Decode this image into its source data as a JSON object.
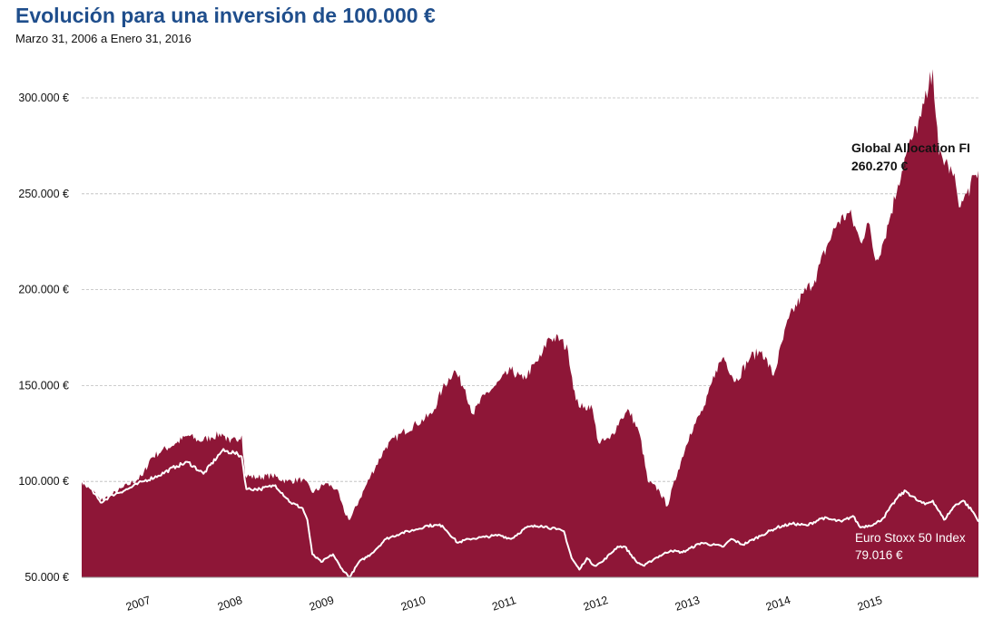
{
  "title": "Evolución para una inversión de 100.000 €",
  "subtitle": "Marzo 31, 2006 a Enero 31, 2016",
  "colors": {
    "fund": "#8e1637",
    "index": "#ffffff",
    "title": "#1f4e8c",
    "grid": "#bbbbbb"
  },
  "chart_data": {
    "type": "area",
    "title": "Evolución para una inversión de 100.000 €",
    "subtitle": "Marzo 31, 2006 a Enero 31, 2016",
    "xlabel": "",
    "ylabel": "",
    "x_range": [
      "2006-03-31",
      "2016-01-31"
    ],
    "ylim": [
      50000,
      320000
    ],
    "y_ticks": [
      50000,
      100000,
      150000,
      200000,
      250000,
      300000
    ],
    "y_tick_labels": [
      "50.000 €",
      "100.000 €",
      "150.000 €",
      "200.000 €",
      "250.000 €",
      "300.000 €"
    ],
    "x_tick_labels": [
      "2007",
      "2008",
      "2009",
      "2010",
      "2011",
      "2012",
      "2013",
      "2014",
      "2015"
    ],
    "grid": true,
    "series": [
      {
        "name": "Global Allocation FI",
        "kind": "area",
        "color": "#8e1637",
        "final_label": "260.270 €",
        "points": [
          [
            "2006-03-31",
            100000
          ],
          [
            "2006-05-01",
            97000
          ],
          [
            "2006-06-15",
            90000
          ],
          [
            "2006-08-01",
            93000
          ],
          [
            "2006-10-01",
            98000
          ],
          [
            "2006-12-01",
            103000
          ],
          [
            "2007-01-01",
            112000
          ],
          [
            "2007-02-15",
            116000
          ],
          [
            "2007-04-15",
            120000
          ],
          [
            "2007-06-01",
            124000
          ],
          [
            "2007-07-15",
            121000
          ],
          [
            "2007-09-01",
            123000
          ],
          [
            "2007-10-15",
            125000
          ],
          [
            "2007-11-15",
            120000
          ],
          [
            "2008-01-01",
            124000
          ],
          [
            "2008-01-15",
            103000
          ],
          [
            "2008-03-01",
            102000
          ],
          [
            "2008-05-01",
            103000
          ],
          [
            "2008-07-01",
            100000
          ],
          [
            "2008-09-01",
            101000
          ],
          [
            "2008-10-15",
            94000
          ],
          [
            "2008-12-01",
            99000
          ],
          [
            "2009-01-15",
            96000
          ],
          [
            "2009-02-15",
            84000
          ],
          [
            "2009-03-10",
            80000
          ],
          [
            "2009-04-15",
            90000
          ],
          [
            "2009-06-01",
            103000
          ],
          [
            "2009-08-01",
            118000
          ],
          [
            "2009-10-01",
            125000
          ],
          [
            "2009-12-01",
            130000
          ],
          [
            "2010-02-01",
            135000
          ],
          [
            "2010-03-15",
            148000
          ],
          [
            "2010-05-01",
            158000
          ],
          [
            "2010-06-15",
            148000
          ],
          [
            "2010-07-15",
            135000
          ],
          [
            "2010-09-01",
            145000
          ],
          [
            "2010-10-15",
            150000
          ],
          [
            "2010-12-15",
            158000
          ],
          [
            "2011-02-01",
            153000
          ],
          [
            "2011-04-15",
            165000
          ],
          [
            "2011-05-15",
            175000
          ],
          [
            "2011-07-01",
            174000
          ],
          [
            "2011-08-01",
            168000
          ],
          [
            "2011-09-01",
            142000
          ],
          [
            "2011-10-01",
            138000
          ],
          [
            "2011-11-01",
            140000
          ],
          [
            "2011-12-01",
            120000
          ],
          [
            "2012-01-15",
            122000
          ],
          [
            "2012-03-01",
            133000
          ],
          [
            "2012-04-01",
            137000
          ],
          [
            "2012-05-15",
            124000
          ],
          [
            "2012-06-15",
            100000
          ],
          [
            "2012-08-01",
            95000
          ],
          [
            "2012-09-01",
            87000
          ],
          [
            "2012-10-15",
            106000
          ],
          [
            "2012-12-01",
            125000
          ],
          [
            "2013-02-01",
            140000
          ],
          [
            "2013-03-15",
            158000
          ],
          [
            "2013-04-15",
            165000
          ],
          [
            "2013-06-01",
            152000
          ],
          [
            "2013-08-01",
            165000
          ],
          [
            "2013-09-15",
            168000
          ],
          [
            "2013-11-01",
            155000
          ],
          [
            "2014-01-01",
            185000
          ],
          [
            "2014-03-01",
            198000
          ],
          [
            "2014-04-15",
            205000
          ],
          [
            "2014-06-01",
            222000
          ],
          [
            "2014-07-15",
            235000
          ],
          [
            "2014-09-01",
            240000
          ],
          [
            "2014-10-15",
            225000
          ],
          [
            "2014-11-15",
            235000
          ],
          [
            "2014-12-15",
            215000
          ],
          [
            "2015-01-15",
            225000
          ],
          [
            "2015-02-15",
            240000
          ],
          [
            "2015-03-15",
            255000
          ],
          [
            "2015-04-15",
            270000
          ],
          [
            "2015-05-15",
            280000
          ],
          [
            "2015-06-15",
            290000
          ],
          [
            "2015-07-15",
            305000
          ],
          [
            "2015-08-01",
            315000
          ],
          [
            "2015-08-25",
            270000
          ],
          [
            "2015-10-01",
            265000
          ],
          [
            "2015-11-01",
            255000
          ],
          [
            "2015-11-20",
            243000
          ],
          [
            "2015-12-15",
            250000
          ],
          [
            "2016-01-31",
            262000
          ]
        ]
      },
      {
        "name": "Euro Stoxx 50 Index",
        "kind": "line",
        "color": "#ffffff",
        "final_label": "79.016 €",
        "points": [
          [
            "2006-03-31",
            100000
          ],
          [
            "2006-05-01",
            97000
          ],
          [
            "2006-06-15",
            89000
          ],
          [
            "2006-08-01",
            93000
          ],
          [
            "2006-10-01",
            96000
          ],
          [
            "2006-12-01",
            100000
          ],
          [
            "2007-02-01",
            103000
          ],
          [
            "2007-04-15",
            108000
          ],
          [
            "2007-06-01",
            110000
          ],
          [
            "2007-08-01",
            104000
          ],
          [
            "2007-10-15",
            116000
          ],
          [
            "2007-12-01",
            115000
          ],
          [
            "2008-01-01",
            113000
          ],
          [
            "2008-01-20",
            96000
          ],
          [
            "2008-03-15",
            96000
          ],
          [
            "2008-05-15",
            98000
          ],
          [
            "2008-07-15",
            89000
          ],
          [
            "2008-09-01",
            86000
          ],
          [
            "2008-09-20",
            80000
          ],
          [
            "2008-10-10",
            62000
          ],
          [
            "2008-11-15",
            58000
          ],
          [
            "2009-01-01",
            62000
          ],
          [
            "2009-02-01",
            55000
          ],
          [
            "2009-03-09",
            50000
          ],
          [
            "2009-04-15",
            58000
          ],
          [
            "2009-06-01",
            62000
          ],
          [
            "2009-08-01",
            70000
          ],
          [
            "2009-10-01",
            73000
          ],
          [
            "2009-12-01",
            75000
          ],
          [
            "2010-01-15",
            77000
          ],
          [
            "2010-03-15",
            77000
          ],
          [
            "2010-05-15",
            68000
          ],
          [
            "2010-07-01",
            70000
          ],
          [
            "2010-09-01",
            71000
          ],
          [
            "2010-11-01",
            72000
          ],
          [
            "2010-12-15",
            70000
          ],
          [
            "2011-02-15",
            76000
          ],
          [
            "2011-04-15",
            77000
          ],
          [
            "2011-06-15",
            75000
          ],
          [
            "2011-07-15",
            74000
          ],
          [
            "2011-08-15",
            60000
          ],
          [
            "2011-09-15",
            54000
          ],
          [
            "2011-10-15",
            60000
          ],
          [
            "2011-11-15",
            56000
          ],
          [
            "2011-12-15",
            58000
          ],
          [
            "2012-02-15",
            66000
          ],
          [
            "2012-03-15",
            66000
          ],
          [
            "2012-05-01",
            58000
          ],
          [
            "2012-06-01",
            56000
          ],
          [
            "2012-07-15",
            60000
          ],
          [
            "2012-09-15",
            64000
          ],
          [
            "2012-11-01",
            63000
          ],
          [
            "2013-01-15",
            68000
          ],
          [
            "2013-04-15",
            66000
          ],
          [
            "2013-05-15",
            70000
          ],
          [
            "2013-07-01",
            67000
          ],
          [
            "2013-09-15",
            72000
          ],
          [
            "2013-11-15",
            76000
          ],
          [
            "2014-01-15",
            78000
          ],
          [
            "2014-03-15",
            77000
          ],
          [
            "2014-05-15",
            81000
          ],
          [
            "2014-08-01",
            79000
          ],
          [
            "2014-09-15",
            82000
          ],
          [
            "2014-10-15",
            76000
          ],
          [
            "2014-12-15",
            78000
          ],
          [
            "2015-01-15",
            81000
          ],
          [
            "2015-03-15",
            92000
          ],
          [
            "2015-04-15",
            95000
          ],
          [
            "2015-06-01",
            90000
          ],
          [
            "2015-07-01",
            88000
          ],
          [
            "2015-08-01",
            90000
          ],
          [
            "2015-09-15",
            80000
          ],
          [
            "2015-11-01",
            88000
          ],
          [
            "2015-12-01",
            90000
          ],
          [
            "2016-01-10",
            84000
          ],
          [
            "2016-01-31",
            79000
          ]
        ]
      }
    ]
  }
}
